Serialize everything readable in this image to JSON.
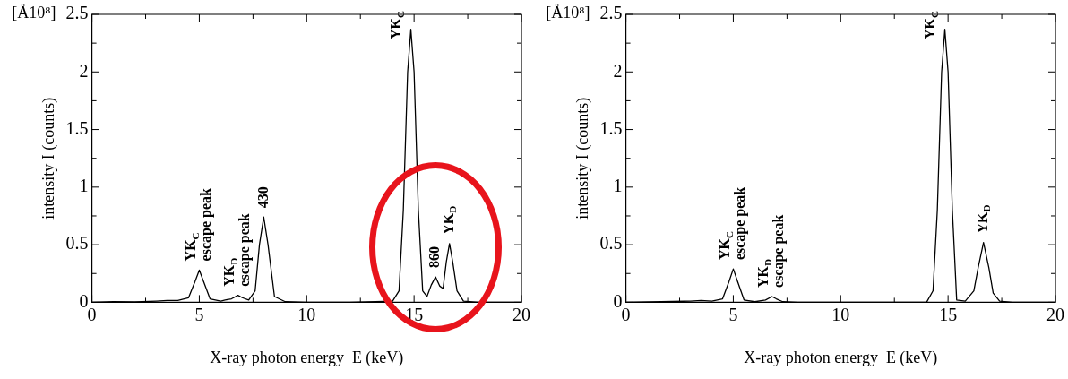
{
  "chart_data": [
    {
      "type": "line",
      "xlabel": "X-ray photon energy  E (keV)",
      "ylabel": "intensity I (counts)",
      "grid": false,
      "legend": false,
      "marker": "none",
      "line_style": "solid",
      "xlim": [
        0,
        20
      ],
      "ylim": [
        0,
        2.5
      ],
      "xticks": [
        0,
        {
          "value": 2.5,
          "label": null
        },
        5,
        {
          "value": 7.5,
          "label": null
        },
        10,
        {
          "value": 12.5,
          "label": null
        },
        15,
        {
          "value": 17.5,
          "label": null
        },
        20
      ],
      "yticks": [
        0,
        {
          "value": 0.25,
          "label": null
        },
        0.5,
        {
          "value": 0.75,
          "label": null
        },
        1,
        {
          "value": 1.25,
          "label": null
        },
        1.5,
        {
          "value": 1.75,
          "label": null
        },
        2,
        {
          "value": 2.25,
          "label": null
        },
        2.5
      ],
      "series": [
        {
          "color": "#000000",
          "x": [
            0,
            1,
            2,
            3,
            3.5,
            4,
            4.5,
            4.8,
            5,
            5.2,
            5.5,
            6,
            6.2,
            6.5,
            6.8,
            7,
            7.3,
            7.6,
            7.8,
            8,
            8.2,
            8.5,
            9,
            10,
            12,
            14,
            14.3,
            14.5,
            14.7,
            14.85,
            15,
            15.2,
            15.4,
            15.6,
            15.8,
            16,
            16.2,
            16.35,
            16.5,
            16.65,
            16.8,
            17,
            17.3,
            18,
            20
          ],
          "values": [
            0,
            0.005,
            0.003,
            0.01,
            0.015,
            0.015,
            0.04,
            0.18,
            0.28,
            0.18,
            0.03,
            0.01,
            0.02,
            0.03,
            0.06,
            0.04,
            0.02,
            0.1,
            0.5,
            0.74,
            0.5,
            0.05,
            0.005,
            0,
            0,
            0.01,
            0.1,
            0.8,
            2,
            2.37,
            2,
            0.8,
            0.1,
            0.05,
            0.15,
            0.22,
            0.14,
            0.12,
            0.35,
            0.51,
            0.35,
            0.1,
            0.01,
            0,
            0
          ]
        }
      ],
      "annotations": [
        "[Å10⁸]",
        {
          "text": "YK$_{C}$\nescape peak",
          "x": 5,
          "y": 0.28
        },
        {
          "text": "YK$_{D}$\nescape peak",
          "x": 6.8,
          "y": 0.06
        },
        {
          "text": "430",
          "x": 8,
          "y": 0.74
        },
        {
          "text": "YK$_{C}$",
          "x": 14.85,
          "y": 2.37
        },
        {
          "text": "860",
          "x": 16,
          "y": 0.22
        },
        {
          "text": "YK$_{D}$",
          "x": 16.65,
          "y": 0.51
        }
      ]
    },
    {
      "type": "line",
      "xlabel": "X-ray photon energy  E (keV)",
      "ylabel": "intensity I (counts)",
      "grid": false,
      "legend": false,
      "marker": "none",
      "line_style": "solid",
      "xlim": [
        0,
        20
      ],
      "ylim": [
        0,
        2.5
      ],
      "xticks": [
        0,
        {
          "value": 2.5,
          "label": null
        },
        5,
        {
          "value": 7.5,
          "label": null
        },
        10,
        {
          "value": 12.5,
          "label": null
        },
        15,
        {
          "value": 17.5,
          "label": null
        },
        20
      ],
      "yticks": [
        0,
        {
          "value": 0.25,
          "label": null
        },
        0.5,
        {
          "value": 0.75,
          "label": null
        },
        1,
        {
          "value": 1.25,
          "label": null
        },
        1.5,
        {
          "value": 1.75,
          "label": null
        },
        2,
        {
          "value": 2.25,
          "label": null
        },
        2.5
      ],
      "series": [
        {
          "color": "#000000",
          "x": [
            0,
            3,
            3.5,
            4,
            4.5,
            4.8,
            5,
            5.2,
            5.5,
            6,
            6.5,
            6.8,
            7,
            7.3,
            8,
            14,
            14.3,
            14.5,
            14.7,
            14.85,
            15,
            15.2,
            15.4,
            15.8,
            16.2,
            16.4,
            16.65,
            16.9,
            17.1,
            17.4,
            18,
            20
          ],
          "values": [
            0,
            0.01,
            0.015,
            0.01,
            0.03,
            0.18,
            0.29,
            0.18,
            0.02,
            0.005,
            0.02,
            0.05,
            0.03,
            0.005,
            0,
            0,
            0.1,
            0.8,
            2,
            2.37,
            2,
            0.8,
            0.02,
            0.01,
            0.1,
            0.3,
            0.52,
            0.3,
            0.08,
            0.01,
            0,
            0
          ]
        }
      ],
      "annotations": [
        "[Å10⁸]",
        {
          "text": "YK$_{C}$\nescape peak",
          "x": 5,
          "y": 0.29
        },
        {
          "text": "YK$_{D}$\nescape peak",
          "x": 6.8,
          "y": 0.05
        },
        {
          "text": "YK$_{C}$",
          "x": 14.85,
          "y": 2.37
        },
        {
          "text": "YK$_{D}$",
          "x": 16.65,
          "y": 0.52
        }
      ]
    }
  ]
}
